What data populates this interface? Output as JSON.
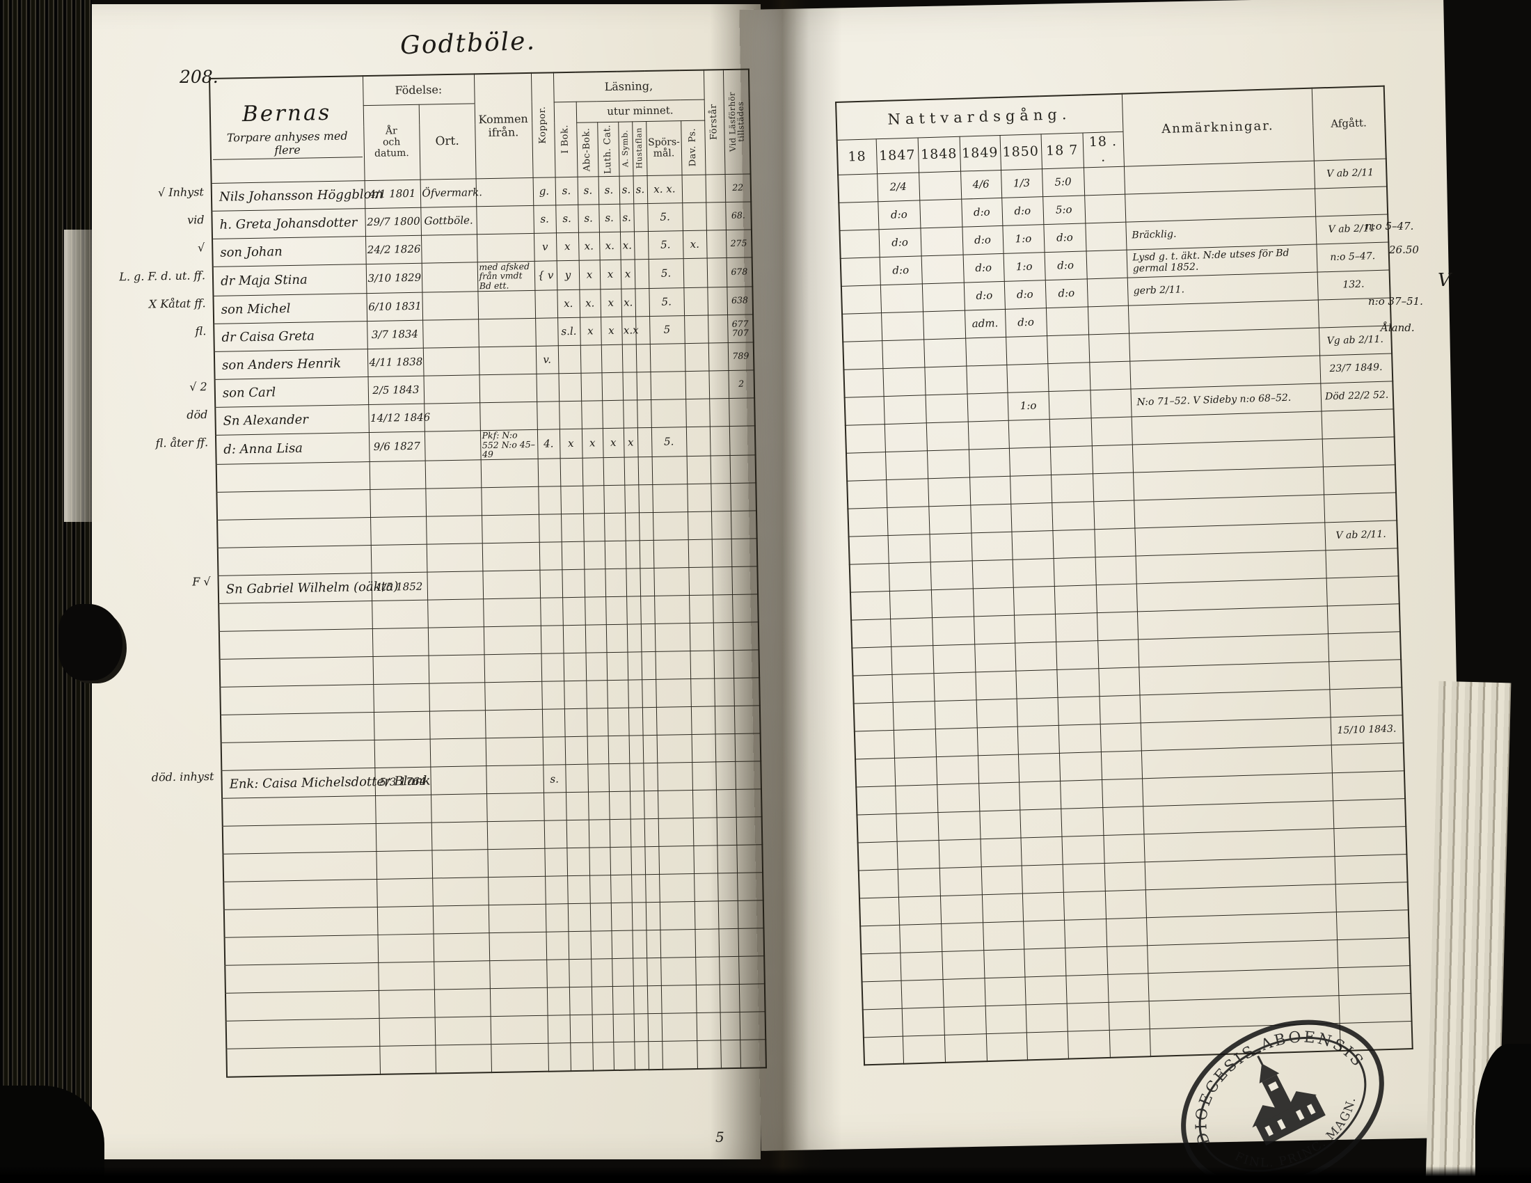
{
  "page": {
    "number": "208.",
    "title": "Godtböle."
  },
  "left_header": {
    "names_title": "Bernas",
    "names_subtitle": "Torpare anhyses med flere",
    "fodelse": "Födelse:",
    "ar_och_datum": "År\noch\ndatum.",
    "ort": "Ort.",
    "kommen_ifran": "Kommen\nifrån.",
    "koppor": "Koppor.",
    "lasning": "Läsning,",
    "utur_minnet": "utur minnet.",
    "i_bok": "I Bok.",
    "abc_bok": "Abc-Bok.",
    "luth_cat": "Luth. Cat.",
    "a_symb": "A. Symb.",
    "hustaflan": "Hustaflan",
    "sporsmal": "Spörs-\nmål.",
    "dav_ps": "Dav. Ps.",
    "forstar": "Förstår",
    "vid_lasforhor": "Vid Läsförhör\ntillstädes"
  },
  "right_header": {
    "nattvardsgang": "Nattvardsgång.",
    "years": [
      "18",
      "1847",
      "1848",
      "1849",
      "1850",
      "18 7",
      "18 . ."
    ],
    "anmarkningar": "Anmärkningar.",
    "afgatt": "Afgått."
  },
  "rows": [
    {
      "margin": "√ Inhyst",
      "name": "Nils Johansson Höggblom",
      "born": "4/1 1801",
      "ort": "Öfvermark.",
      "kommen": "",
      "koppor": "g.",
      "reading": [
        "s.",
        "s.",
        "s.",
        "s.",
        "s.",
        "x. x.",
        ""
      ],
      "forstar": "",
      "vid": "22",
      "natt": [
        "",
        "2/4",
        "",
        "4/6",
        "1/3",
        "5:0",
        ""
      ],
      "anm": "",
      "afgatt": "V ab 2/11"
    },
    {
      "margin": "vid",
      "name": "h. Greta Johansdotter",
      "born": "29/7 1800",
      "ort": "Gottböle.",
      "koppor": "s.",
      "reading": [
        "s.",
        "s.",
        "s.",
        "s.",
        "",
        "5.",
        ""
      ],
      "vid": "68.",
      "natt": [
        "",
        "d:o",
        "",
        "d:o",
        "d:o",
        "5:o",
        ""
      ],
      "anm": "",
      "afgatt": ""
    },
    {
      "margin": "√",
      "name": "son Johan",
      "born": "24/2 1826",
      "koppor": "v",
      "reading": [
        "x",
        "x.",
        "x.",
        "x.",
        "",
        "5.",
        "x."
      ],
      "vid": "275",
      "natt": [
        "",
        "d:o",
        "",
        "d:o",
        "1:o",
        "d:o",
        ""
      ],
      "anm": "Bräcklig.",
      "afgatt": "V ab 2/11"
    },
    {
      "margin": "L. g. F. d. ut. ff.",
      "name": "dr Maja Stina",
      "born": "3/10 1829",
      "kommen": "med afsked från vmdt Bd ett.",
      "koppor": "{ v",
      "reading": [
        "y",
        "x",
        "x",
        "x",
        "",
        "5.",
        ""
      ],
      "vid": "678",
      "natt": [
        "",
        "d:o",
        "",
        "d:o",
        "1:o",
        "d:o",
        ""
      ],
      "anm": "Lysd g. t. äkt. N:de utses för Bd germal 1852.",
      "afgatt": "n:o 5–47."
    },
    {
      "margin": "X Kåtat ff.",
      "name": "son Michel",
      "born": "6/10 1831",
      "reading": [
        "x.",
        "x.",
        "x",
        "x.",
        "",
        "5.",
        ""
      ],
      "vid": "638",
      "natt": [
        "",
        "",
        "",
        "d:o",
        "d:o",
        "d:o",
        ""
      ],
      "anm": "gerb 2/11.",
      "afgatt": "132."
    },
    {
      "margin": "fl.",
      "name": "dr Caisa Greta",
      "born": "3/7 1834",
      "reading": [
        "s.l.",
        "x",
        "x",
        "x.x",
        "",
        "5",
        ""
      ],
      "vid": "677 707",
      "natt": [
        "",
        "",
        "",
        "adm.",
        "d:o",
        "",
        ""
      ],
      "anm": "",
      "afgatt": ""
    },
    {
      "name": "son Anders Henrik",
      "born": "4/11 1838",
      "koppor": "v.",
      "vid": "789",
      "natt": [
        "",
        "",
        "",
        "",
        "",
        "",
        ""
      ],
      "anm": "",
      "afgatt": "Vg ab 2/11."
    },
    {
      "margin": "√ 2",
      "name": "son Carl",
      "born": "2/5 1843",
      "vid": "2",
      "natt": [
        "",
        "",
        "",
        "",
        "",
        "",
        ""
      ],
      "anm": "",
      "afgatt": "23/7 1849."
    },
    {
      "margin": "död",
      "name": "Sn Alexander",
      "born": "14/12 1846",
      "natt": [
        "",
        "",
        "",
        "",
        "1:o",
        "",
        ""
      ],
      "anm": "N:o 71–52. V Sideby n:o 68–52.",
      "afgatt": "Död 22/2 52."
    },
    {
      "margin": "fl. åter ff.",
      "name": "d: Anna Lisa",
      "born": "9/6 1827",
      "kommen": "Pkf: N:o 552 N:o 45–49",
      "koppor": "4.",
      "reading": [
        "x",
        "x",
        "x",
        "x",
        "",
        "5.",
        ""
      ],
      "vid": "",
      "natt": [
        "",
        "",
        "",
        "",
        "",
        "",
        ""
      ],
      "anm": "",
      "afgatt": ""
    },
    {},
    {},
    {},
    {
      "afgatt": "V ab 2/11."
    },
    {
      "margin": "F √",
      "name": "Sn Gabriel Wilhelm (oäkta)",
      "born": "1/5 1852"
    },
    {},
    {},
    {},
    {},
    {},
    {
      "afgatt": "15/10 1843."
    },
    {
      "margin": "död. inhyst",
      "name": "Enk: Caisa Michelsdotter Blank",
      "born": "5/3 1764",
      "koppor": "s."
    },
    {},
    {},
    {},
    {},
    {},
    {},
    {},
    {},
    {},
    {}
  ],
  "marginalia": [
    {
      "text": "n:o 5–47."
    },
    {
      "text": "26.50"
    },
    {
      "text": "n:o 37–51."
    },
    {
      "text": "Åland."
    },
    {
      "text": "V"
    },
    {
      "text": "5"
    }
  ],
  "stamp": {
    "top_text": "DIOECESIS ABOENSIS",
    "bottom_text": "FINL. PRINC. MAGN."
  }
}
